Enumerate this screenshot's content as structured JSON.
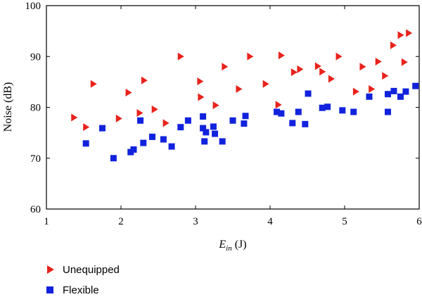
{
  "chart_data": {
    "type": "scatter",
    "title": "",
    "xlabel_main": "E",
    "xlabel_sub": "in",
    "xlabel_unit": " (J)",
    "ylabel": "Noise (dB)",
    "xlim": [
      1,
      6
    ],
    "ylim": [
      60,
      100
    ],
    "x_ticks": [
      "1",
      "2",
      "3",
      "4",
      "5",
      "6"
    ],
    "y_ticks": [
      "60",
      "70",
      "80",
      "90",
      "100"
    ],
    "legend_position": "bottom-left",
    "series": [
      {
        "name": "Unequipped",
        "marker": "triangle-right",
        "color": "#e8231c",
        "points": [
          [
            1.37,
            78
          ],
          [
            1.53,
            76.1
          ],
          [
            1.63,
            84.6
          ],
          [
            1.97,
            77.8
          ],
          [
            2.1,
            82.9
          ],
          [
            2.25,
            78.9
          ],
          [
            2.31,
            85.3
          ],
          [
            2.45,
            79.6
          ],
          [
            2.6,
            76.9
          ],
          [
            2.8,
            90
          ],
          [
            3.06,
            85.1
          ],
          [
            3.07,
            82
          ],
          [
            3.27,
            80.4
          ],
          [
            3.39,
            88
          ],
          [
            3.58,
            83.6
          ],
          [
            3.73,
            90
          ],
          [
            3.94,
            84.6
          ],
          [
            4.11,
            80.5
          ],
          [
            4.15,
            90.2
          ],
          [
            4.32,
            86.9
          ],
          [
            4.4,
            87.5
          ],
          [
            4.64,
            88.1
          ],
          [
            4.7,
            87
          ],
          [
            4.82,
            85.6
          ],
          [
            4.92,
            90
          ],
          [
            5.15,
            83.1
          ],
          [
            5.24,
            88
          ],
          [
            5.36,
            83.6
          ],
          [
            5.45,
            89
          ],
          [
            5.54,
            86.2
          ],
          [
            5.65,
            92.2
          ],
          [
            5.75,
            94.2
          ],
          [
            5.8,
            88.9
          ],
          [
            5.86,
            94.6
          ]
        ]
      },
      {
        "name": "Flexible",
        "marker": "square",
        "color": "#1122dd",
        "points": [
          [
            1.53,
            72.9
          ],
          [
            1.75,
            75.9
          ],
          [
            1.9,
            70
          ],
          [
            2.13,
            71.2
          ],
          [
            2.17,
            71.7
          ],
          [
            2.26,
            77.4
          ],
          [
            2.3,
            73
          ],
          [
            2.42,
            74.2
          ],
          [
            2.57,
            73.7
          ],
          [
            2.68,
            72.3
          ],
          [
            2.8,
            76.1
          ],
          [
            2.9,
            77.4
          ],
          [
            3.1,
            78.2
          ],
          [
            3.1,
            75.9
          ],
          [
            3.12,
            73.3
          ],
          [
            3.14,
            75.1
          ],
          [
            3.24,
            76.2
          ],
          [
            3.26,
            74.8
          ],
          [
            3.36,
            73.3
          ],
          [
            3.5,
            77.4
          ],
          [
            3.65,
            76.8
          ],
          [
            3.67,
            78.3
          ],
          [
            4.09,
            79.1
          ],
          [
            4.15,
            78.8
          ],
          [
            4.3,
            76.9
          ],
          [
            4.38,
            79.1
          ],
          [
            4.47,
            76.7
          ],
          [
            4.51,
            82.7
          ],
          [
            4.7,
            79.9
          ],
          [
            4.77,
            80.1
          ],
          [
            4.97,
            79.4
          ],
          [
            5.12,
            79.1
          ],
          [
            5.33,
            82.1
          ],
          [
            5.58,
            79.1
          ],
          [
            5.58,
            82.6
          ],
          [
            5.66,
            83.2
          ],
          [
            5.75,
            82.1
          ],
          [
            5.82,
            83.1
          ],
          [
            5.95,
            84.2
          ]
        ]
      }
    ]
  }
}
